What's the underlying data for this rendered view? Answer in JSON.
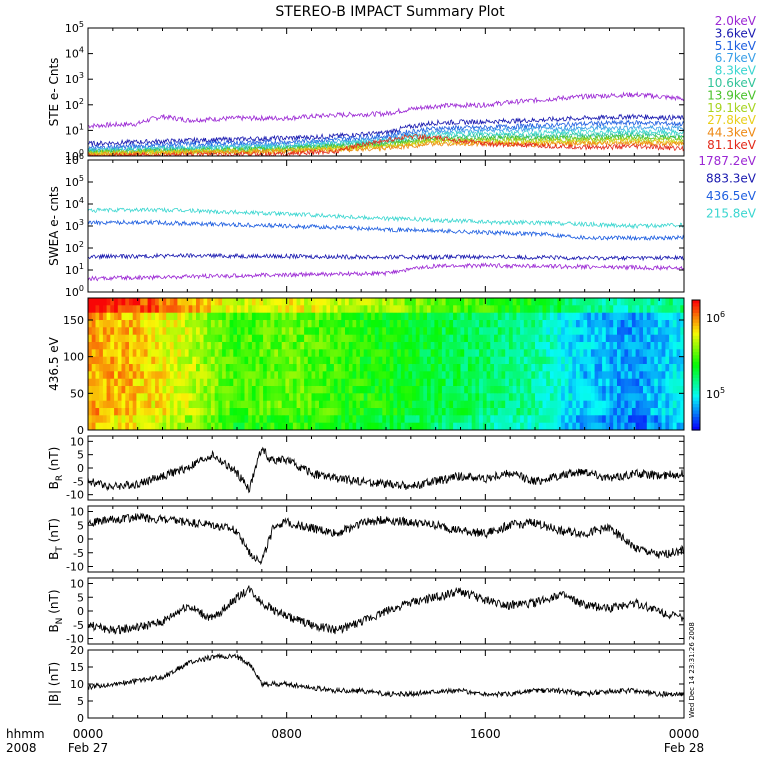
{
  "title": "STEREO-B IMPACT Summary Plot",
  "footer": {
    "time_label": "hhmm",
    "year_label": "2008",
    "start_date": "Feb 27",
    "end_date": "Feb 28",
    "created_note": "Wed Dec 14 23:31:26 2008"
  },
  "colors": {
    "axis": "#000000",
    "trace": "#000000",
    "background": "#ffffff"
  },
  "chart_data": [
    {
      "id": "ste",
      "type": "line",
      "ylabel": "STE e- Cnts",
      "yscale": "log",
      "ylim": [
        1,
        100000
      ],
      "yticks": [
        "10^0",
        "10^1",
        "10^2",
        "10^3",
        "10^4",
        "10^5"
      ],
      "x_range_hours": [
        0,
        24
      ],
      "x_tick_labels": [
        "0000",
        "0800",
        "1600",
        "0000"
      ],
      "legend_position": "right",
      "series": [
        {
          "name": "2.0keV",
          "color": "#9b27d4",
          "x": [
            0,
            2,
            3,
            4,
            6,
            8,
            10,
            12,
            14,
            16,
            18,
            20,
            22,
            24
          ],
          "y": [
            15,
            18,
            35,
            25,
            30,
            30,
            40,
            45,
            90,
            100,
            150,
            210,
            250,
            170
          ]
        },
        {
          "name": "3.6keV",
          "color": "#1a1ab0",
          "x": [
            0,
            2,
            4,
            6,
            8,
            10,
            12,
            14,
            16,
            18,
            20,
            22,
            24
          ],
          "y": [
            3,
            3.5,
            4,
            4.5,
            5,
            6,
            8,
            20,
            22,
            25,
            30,
            35,
            30
          ]
        },
        {
          "name": "5.1keV",
          "color": "#1f5fe0",
          "x": [
            0,
            2,
            4,
            6,
            8,
            10,
            12,
            14,
            16,
            18,
            20,
            22,
            24
          ],
          "y": [
            2,
            2.5,
            3,
            3.2,
            3.5,
            4.5,
            6,
            12,
            13,
            15,
            18,
            20,
            18
          ]
        },
        {
          "name": "6.7keV",
          "color": "#3a9ee8",
          "x": [
            0,
            4,
            8,
            12,
            14,
            16,
            18,
            20,
            22,
            24
          ],
          "y": [
            1.8,
            2.2,
            2.8,
            4.5,
            9,
            10,
            11,
            12,
            13,
            12
          ]
        },
        {
          "name": "8.3keV",
          "color": "#3ad6d0",
          "x": [
            0,
            4,
            8,
            12,
            14,
            16,
            18,
            20,
            22,
            24
          ],
          "y": [
            1.6,
            2,
            2.4,
            3.8,
            7,
            7.5,
            8,
            8.5,
            9,
            8
          ]
        },
        {
          "name": "10.6keV",
          "color": "#33c49a",
          "x": [
            0,
            4,
            8,
            12,
            14,
            16,
            18,
            20,
            22,
            24
          ],
          "y": [
            1.5,
            1.8,
            2.1,
            3.2,
            5.5,
            6,
            6,
            6.5,
            7,
            6
          ]
        },
        {
          "name": "13.9keV",
          "color": "#49c22b",
          "x": [
            0,
            4,
            8,
            12,
            14,
            16,
            18,
            20,
            22,
            24
          ],
          "y": [
            1.4,
            1.6,
            1.9,
            2.8,
            4.5,
            4.8,
            5,
            5,
            5.5,
            5
          ]
        },
        {
          "name": "19.1keV",
          "color": "#a6d41f",
          "x": [
            0,
            4,
            8,
            12,
            14,
            16,
            18,
            20,
            22,
            24
          ],
          "y": [
            1.3,
            1.5,
            1.7,
            2.5,
            4,
            4,
            4,
            4.2,
            4.5,
            4
          ]
        },
        {
          "name": "27.8keV",
          "color": "#e9cf1c",
          "x": [
            0,
            4,
            8,
            12,
            14,
            16,
            18,
            20,
            22,
            24
          ],
          "y": [
            1.2,
            1.4,
            1.6,
            2.2,
            3.5,
            3.4,
            3.3,
            3.5,
            3.8,
            3.3
          ]
        },
        {
          "name": "44.3keV",
          "color": "#ee8a16",
          "x": [
            0,
            4,
            8,
            12,
            14,
            16,
            18,
            20,
            22,
            24
          ],
          "y": [
            1.1,
            1.3,
            1.5,
            2,
            3,
            3,
            2.8,
            3,
            3.2,
            2.8
          ]
        },
        {
          "name": "81.1keV",
          "color": "#e32a1a",
          "x": [
            0,
            4,
            8,
            10,
            12,
            13,
            14,
            16,
            18,
            20,
            22,
            24
          ],
          "y": [
            1,
            1.1,
            1.2,
            1.5,
            4,
            6,
            5,
            3,
            2.5,
            2.2,
            2.3,
            2
          ]
        }
      ]
    },
    {
      "id": "swea",
      "type": "line",
      "ylabel": "SWEA e- cnts",
      "yscale": "log",
      "ylim": [
        1,
        1000000
      ],
      "yticks": [
        "10^0",
        "10^1",
        "10^2",
        "10^3",
        "10^4",
        "10^5",
        "10^6"
      ],
      "x_range_hours": [
        0,
        24
      ],
      "legend_position": "right",
      "series": [
        {
          "name": "1787.2eV",
          "color": "#9b27d4",
          "x": [
            0,
            4,
            8,
            12,
            14,
            16,
            20,
            24
          ],
          "y": [
            4,
            5,
            6,
            7,
            15,
            16,
            14,
            12
          ]
        },
        {
          "name": "883.3eV",
          "color": "#1a1ab0",
          "x": [
            0,
            4,
            8,
            12,
            16,
            20,
            24
          ],
          "y": [
            40,
            45,
            42,
            38,
            40,
            35,
            36
          ]
        },
        {
          "name": "436.5eV",
          "color": "#1f5fe0",
          "x": [
            0,
            2,
            4,
            8,
            12,
            16,
            18,
            20,
            22,
            24
          ],
          "y": [
            1400,
            1500,
            1300,
            1000,
            700,
            500,
            450,
            300,
            280,
            300
          ]
        },
        {
          "name": "215.8eV",
          "color": "#3ad6d0",
          "x": [
            0,
            2,
            4,
            8,
            12,
            16,
            18,
            20,
            22,
            24
          ],
          "y": [
            5000,
            5500,
            5000,
            3500,
            2200,
            1500,
            1400,
            1200,
            1000,
            1100
          ]
        }
      ]
    },
    {
      "id": "pad",
      "type": "heatmap",
      "ylabel": "436.5 eV",
      "ylim": [
        0,
        180
      ],
      "yticks": [
        "0",
        "50",
        "100",
        "150"
      ],
      "x_range_hours": [
        0,
        24
      ],
      "colorbar": {
        "log": true,
        "tick_labels": [
          "10^5",
          "10^6"
        ]
      },
      "description_level": [
        0.85,
        0.8,
        0.7,
        0.55,
        0.6,
        0.55,
        0.5,
        0.45,
        0.4,
        0.35,
        0.2,
        0.15,
        0.25
      ]
    },
    {
      "id": "br",
      "type": "line",
      "ylabel": "B_R (nT)",
      "ylim": [
        -12,
        12
      ],
      "yticks": [
        "10",
        "5",
        "0",
        "-5",
        "-10"
      ],
      "x": [
        0,
        1,
        2,
        3,
        4,
        5,
        6,
        6.5,
        7,
        7.3,
        8,
        9,
        10,
        11,
        12,
        13,
        14,
        15,
        16,
        17,
        18,
        19,
        20,
        21,
        22,
        23,
        24
      ],
      "y": [
        -5,
        -7,
        -6,
        -3,
        0,
        5,
        -2,
        -8,
        8,
        3,
        3,
        -2,
        -4,
        -5,
        -6,
        -7,
        -5,
        -3,
        -4,
        -2,
        -5,
        -3,
        -1,
        -4,
        -2,
        -3,
        -2
      ]
    },
    {
      "id": "bt",
      "type": "line",
      "ylabel": "B_T (nT)",
      "ylim": [
        -12,
        12
      ],
      "yticks": [
        "10",
        "5",
        "0",
        "-5",
        "-10"
      ],
      "x": [
        0,
        1,
        2,
        3,
        4,
        5,
        6,
        6.5,
        7,
        7.5,
        8,
        9,
        10,
        11,
        12,
        13,
        14,
        15,
        16,
        17,
        18,
        19,
        20,
        21,
        22,
        23,
        24
      ],
      "y": [
        6,
        7,
        8,
        7,
        6,
        5,
        3,
        -5,
        -8,
        5,
        6,
        4,
        2,
        6,
        7,
        6,
        5,
        3,
        2,
        5,
        6,
        3,
        2,
        4,
        -3,
        -6,
        -4
      ]
    },
    {
      "id": "bn",
      "type": "line",
      "ylabel": "B_N (nT)",
      "ylim": [
        -12,
        12
      ],
      "yticks": [
        "10",
        "5",
        "0",
        "-5",
        "-10"
      ],
      "x": [
        0,
        1,
        2,
        3,
        4,
        5,
        6,
        6.5,
        7,
        8,
        9,
        10,
        11,
        12,
        13,
        14,
        15,
        16,
        17,
        18,
        19,
        20,
        21,
        22,
        23,
        24
      ],
      "y": [
        -5,
        -7,
        -6,
        -4,
        2,
        -3,
        5,
        8,
        3,
        -2,
        -5,
        -7,
        -4,
        0,
        3,
        5,
        7,
        4,
        2,
        3,
        6,
        2,
        1,
        3,
        0,
        -3
      ]
    },
    {
      "id": "bmag",
      "type": "line",
      "ylabel": "|B| (nT)",
      "ylim": [
        0,
        20
      ],
      "yticks": [
        "0",
        "5",
        "10",
        "15",
        "20"
      ],
      "x": [
        0,
        1,
        2,
        3,
        4,
        5,
        6,
        6.5,
        7,
        8,
        9,
        10,
        11,
        12,
        13,
        14,
        15,
        16,
        17,
        18,
        19,
        20,
        21,
        22,
        23,
        24
      ],
      "y": [
        9,
        10,
        11,
        12,
        16,
        18,
        18,
        16,
        10,
        10,
        9,
        8,
        8,
        7,
        7,
        8,
        8,
        7,
        7,
        8,
        8,
        7,
        8,
        8,
        7,
        7
      ]
    }
  ]
}
